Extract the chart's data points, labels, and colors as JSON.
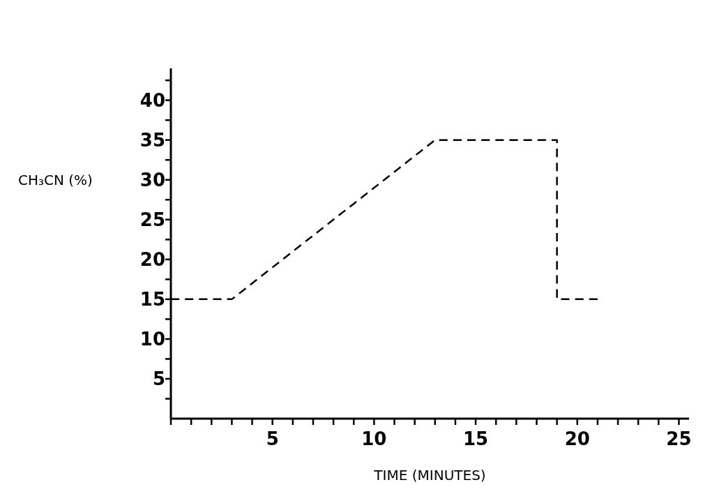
{
  "chart_data": {
    "type": "line",
    "xlabel": "TIME (MINUTES)",
    "ylabel": "CH₃CN (%)",
    "x": [
      0,
      3,
      13,
      19,
      19,
      21
    ],
    "series": [
      {
        "color": "#000000",
        "values": [
          15,
          15,
          35,
          35,
          15,
          15
        ]
      }
    ],
    "line_style": "dashed",
    "marker": "none",
    "grid": false,
    "xlim": [
      0,
      25.5
    ],
    "ylim": [
      0,
      44
    ],
    "xticks": [
      {
        "value": 0,
        "label": null
      },
      {
        "value": 1,
        "label": null
      },
      {
        "value": 2,
        "label": null
      },
      {
        "value": 3,
        "label": null
      },
      {
        "value": 4,
        "label": null
      },
      5,
      {
        "value": 6,
        "label": null
      },
      {
        "value": 7,
        "label": null
      },
      {
        "value": 8,
        "label": null
      },
      {
        "value": 9,
        "label": null
      },
      10,
      {
        "value": 11,
        "label": null
      },
      {
        "value": 12,
        "label": null
      },
      {
        "value": 13,
        "label": null
      },
      {
        "value": 14,
        "label": null
      },
      15,
      {
        "value": 16,
        "label": null
      },
      {
        "value": 17,
        "label": null
      },
      {
        "value": 18,
        "label": null
      },
      {
        "value": 19,
        "label": null
      },
      20,
      {
        "value": 21,
        "label": null
      },
      {
        "value": 22,
        "label": null
      },
      {
        "value": 23,
        "label": null
      },
      {
        "value": 24,
        "label": null
      },
      25
    ],
    "yticks": [
      {
        "value": 2.5,
        "label": null
      },
      5,
      {
        "value": 7.5,
        "label": null
      },
      10,
      {
        "value": 12.5,
        "label": null
      },
      15,
      {
        "value": 17.5,
        "label": null
      },
      20,
      {
        "value": 22.5,
        "label": null
      },
      25,
      {
        "value": 27.5,
        "label": null
      },
      30,
      {
        "value": 32.5,
        "label": null
      },
      35,
      {
        "value": 37.5,
        "label": null
      },
      40,
      {
        "value": 42.5,
        "label": null
      }
    ]
  }
}
